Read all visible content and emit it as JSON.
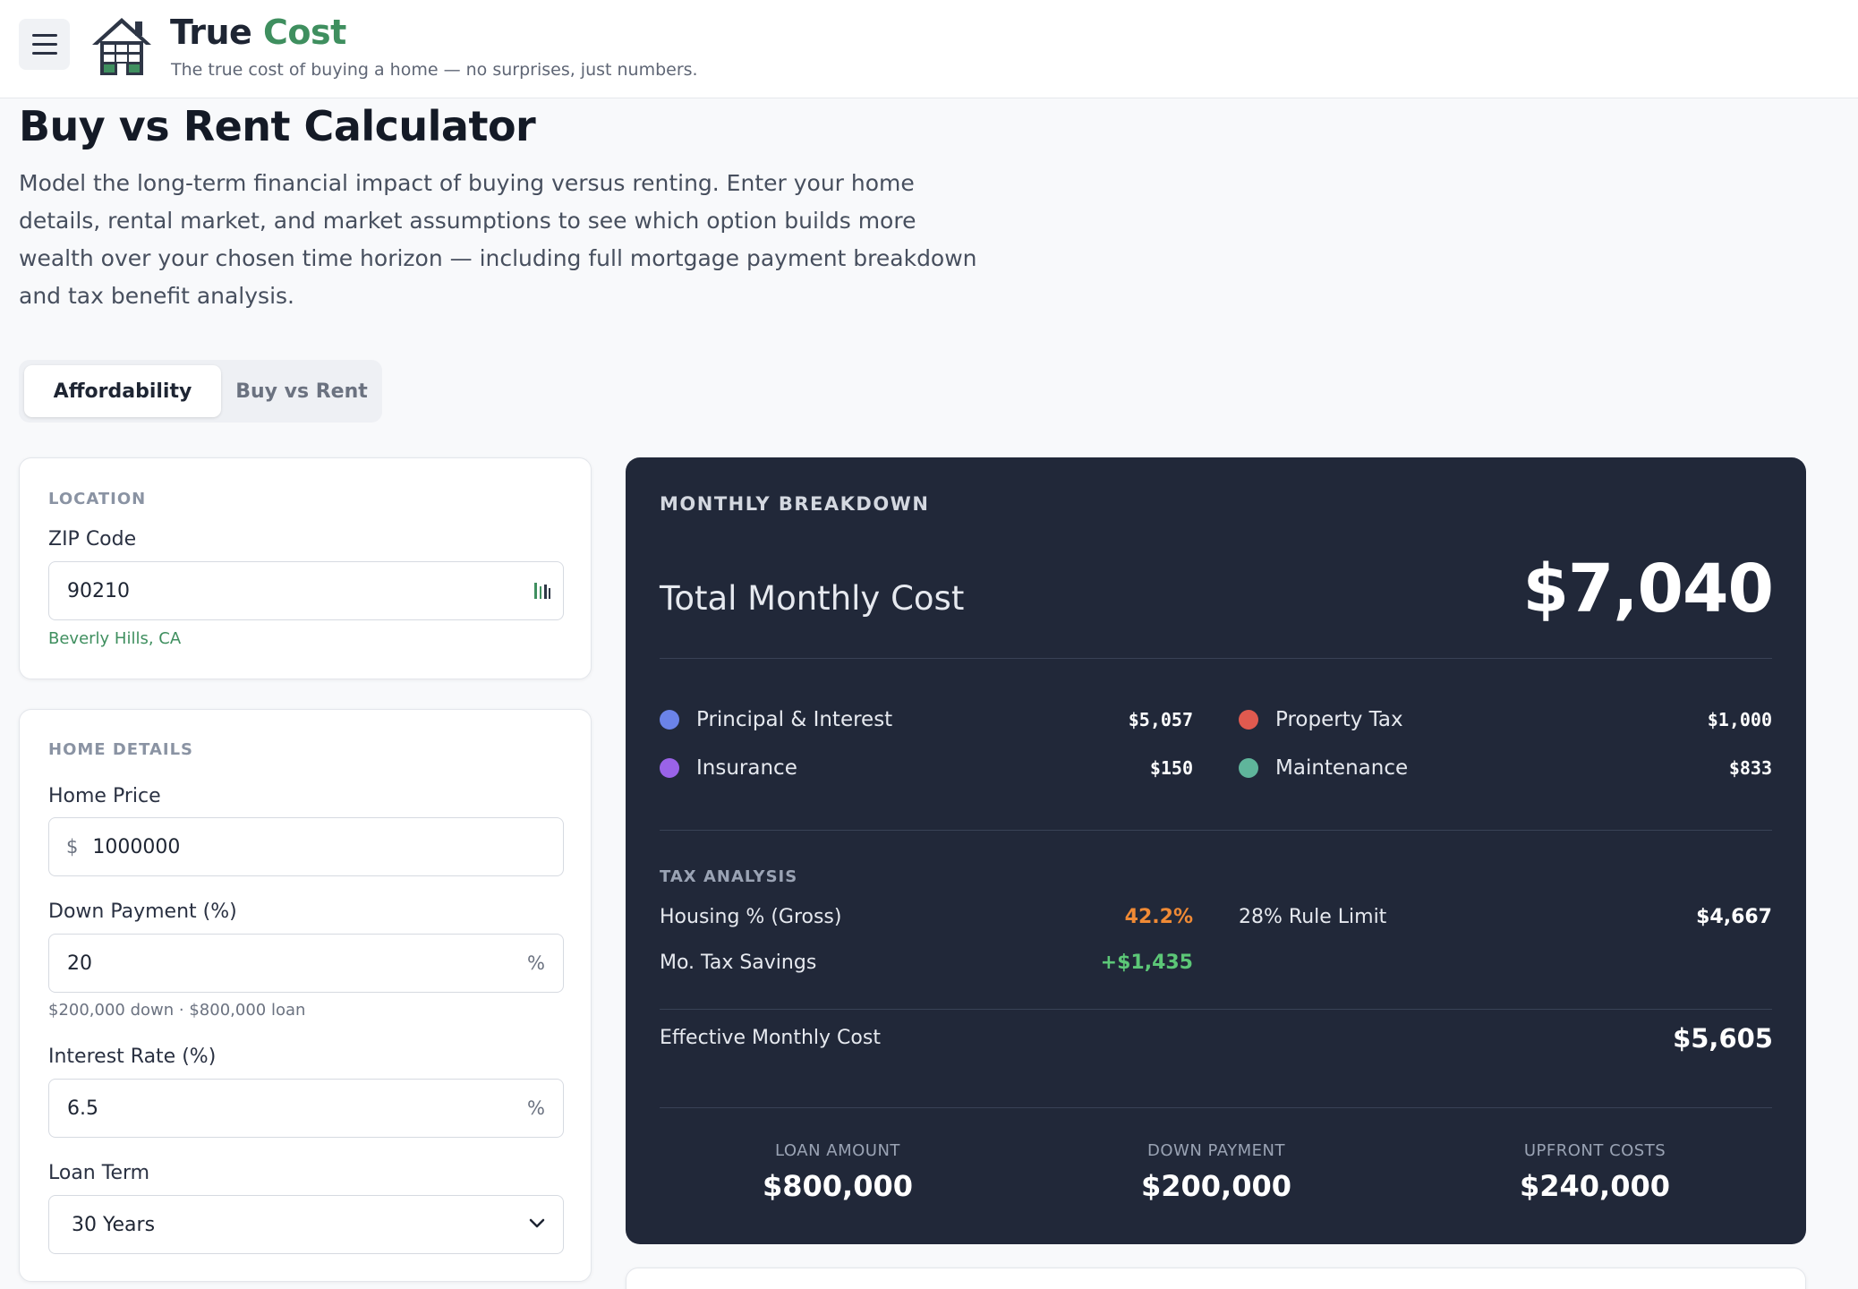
{
  "header": {
    "brand_main": "True",
    "brand_accent": "Cost",
    "tagline": "The true cost of buying a home — no surprises, just numbers.",
    "accent_color": "#3f8f5f"
  },
  "intro": {
    "title": "Buy vs Rent Calculator",
    "description": "Model the long-term financial impact of buying versus renting. Enter your home details, rental market, and market assumptions to see which option builds more wealth over your chosen time horizon — including full mortgage payment breakdown and tax benefit analysis."
  },
  "tabs": [
    {
      "label": "Affordability",
      "active": true
    },
    {
      "label": "Buy vs Rent",
      "active": false
    }
  ],
  "location": {
    "section": "LOCATION",
    "zip_label": "ZIP Code",
    "zip_value": "90210",
    "zip_hint": "Beverly Hills, CA"
  },
  "home": {
    "section": "HOME DETAILS",
    "price_label": "Home Price",
    "price_prefix": "$",
    "price_value": "1000000",
    "down_label": "Down Payment (%)",
    "down_value": "20",
    "down_suffix": "%",
    "down_hint": "$200,000 down · $800,000 loan",
    "rate_label": "Interest Rate (%)",
    "rate_value": "6.5",
    "rate_suffix": "%",
    "term_label": "Loan Term",
    "term_value": "30 Years"
  },
  "breakdown": {
    "header": "MONTHLY BREAKDOWN",
    "total_label": "Total Monthly Cost",
    "total_value": "$7,040",
    "items": [
      {
        "label": "Principal & Interest",
        "value": "$5,057",
        "color": "#6b83e8"
      },
      {
        "label": "Property Tax",
        "value": "$1,000",
        "color": "#e05a4f"
      },
      {
        "label": "Insurance",
        "value": "$150",
        "color": "#9a63e8"
      },
      {
        "label": "Maintenance",
        "value": "$833",
        "color": "#5fb59b"
      }
    ],
    "tax": {
      "header": "TAX ANALYSIS",
      "housing_label": "Housing % (Gross)",
      "housing_value": "42.2%",
      "housing_color": "#f08a35",
      "rule_label": "28% Rule Limit",
      "rule_value": "$4,667",
      "savings_label": "Mo. Tax Savings",
      "savings_value": "+$1,435",
      "savings_color": "#5cc777"
    },
    "effective_label": "Effective Monthly Cost",
    "effective_value": "$5,605",
    "stats": [
      {
        "label": "LOAN AMOUNT",
        "value": "$800,000"
      },
      {
        "label": "DOWN PAYMENT",
        "value": "$200,000"
      },
      {
        "label": "UPFRONT COSTS",
        "value": "$240,000"
      }
    ]
  }
}
